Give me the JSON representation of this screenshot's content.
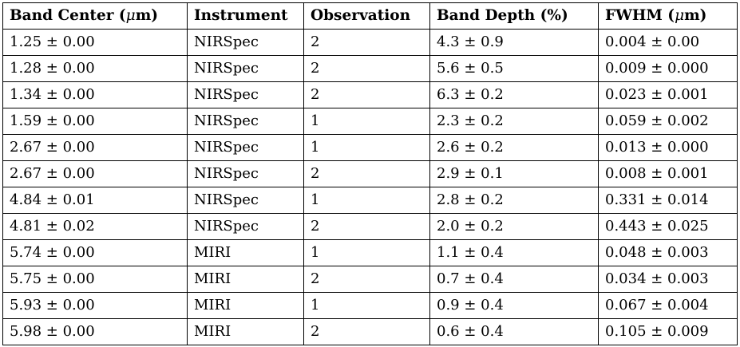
{
  "table": {
    "headers": [
      {
        "pre": "Band Center (",
        "italic": "μ",
        "post": "m)"
      },
      {
        "pre": "Instrument",
        "italic": "",
        "post": ""
      },
      {
        "pre": "Observation",
        "italic": "",
        "post": ""
      },
      {
        "pre": "Band Depth (%)",
        "italic": "",
        "post": ""
      },
      {
        "pre": "FWHM (",
        "italic": "μ",
        "post": "m)"
      }
    ],
    "rows": [
      [
        "1.25 ± 0.00",
        "NIRSpec",
        "2",
        "4.3 ± 0.9",
        "0.004 ± 0.00"
      ],
      [
        "1.28 ± 0.00",
        "NIRSpec",
        "2",
        "5.6 ± 0.5",
        "0.009 ± 0.000"
      ],
      [
        "1.34 ± 0.00",
        "NIRSpec",
        "2",
        "6.3 ± 0.2",
        "0.023 ± 0.001"
      ],
      [
        "1.59 ± 0.00",
        "NIRSpec",
        "1",
        "2.3 ± 0.2",
        "0.059 ± 0.002"
      ],
      [
        "2.67 ± 0.00",
        "NIRSpec",
        "1",
        "2.6 ± 0.2",
        "0.013 ± 0.000"
      ],
      [
        "2.67 ± 0.00",
        "NIRSpec",
        "2",
        "2.9 ± 0.1",
        "0.008 ± 0.001"
      ],
      [
        "4.84 ± 0.01",
        "NIRSpec",
        "1",
        "2.8 ± 0.2",
        "0.331 ± 0.014"
      ],
      [
        "4.81 ± 0.02",
        "NIRSpec",
        "2",
        "2.0 ± 0.2",
        "0.443 ± 0.025"
      ],
      [
        "5.74 ± 0.00",
        "MIRI",
        "1",
        "1.1 ± 0.4",
        "0.048 ± 0.003"
      ],
      [
        "5.75 ± 0.00",
        "MIRI",
        "2",
        "0.7 ± 0.4",
        "0.034 ± 0.003"
      ],
      [
        "5.93 ± 0.00",
        "MIRI",
        "1",
        "0.9 ± 0.4",
        "0.067 ± 0.004"
      ],
      [
        "5.98 ± 0.00",
        "MIRI",
        "2",
        "0.6 ± 0.4",
        "0.105 ± 0.009"
      ]
    ]
  }
}
